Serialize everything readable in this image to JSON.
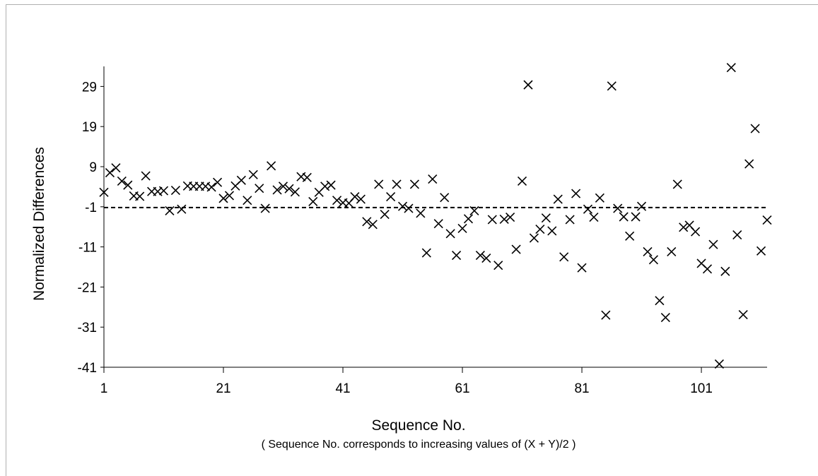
{
  "chart_data": {
    "type": "scatter",
    "title": "",
    "xlabel": "Sequence No.",
    "xlabel_note": "( Sequence No. corresponds to increasing values of (X + Y)/2 )",
    "ylabel": "Normalized Differences",
    "xlim": [
      1,
      112
    ],
    "ylim": [
      -41,
      34
    ],
    "xticks": [
      1,
      21,
      41,
      61,
      81,
      101
    ],
    "yticks": [
      29,
      19,
      9,
      -1,
      -11,
      -21,
      -31,
      -41
    ],
    "grid": false,
    "marker": "x",
    "mean_line": {
      "y": -1.2,
      "style": "dashed"
    },
    "points": [
      [
        1,
        2.6
      ],
      [
        2,
        7.5
      ],
      [
        3,
        8.7
      ],
      [
        4,
        5.4
      ],
      [
        5,
        4.4
      ],
      [
        6,
        1.7
      ],
      [
        7,
        1.6
      ],
      [
        8,
        6.7
      ],
      [
        9,
        2.8
      ],
      [
        10,
        2.8
      ],
      [
        11,
        3.0
      ],
      [
        12,
        -2.0
      ],
      [
        13,
        3.1
      ],
      [
        14,
        -1.6
      ],
      [
        15,
        4.2
      ],
      [
        16,
        4.1
      ],
      [
        17,
        4.1
      ],
      [
        18,
        4.1
      ],
      [
        19,
        3.9
      ],
      [
        20,
        5.1
      ],
      [
        21,
        1.1
      ],
      [
        22,
        1.8
      ],
      [
        23,
        4.2
      ],
      [
        24,
        5.6
      ],
      [
        25,
        0.6
      ],
      [
        26,
        7.0
      ],
      [
        27,
        3.6
      ],
      [
        28,
        -1.4
      ],
      [
        29,
        9.2
      ],
      [
        30,
        3.2
      ],
      [
        31,
        4.1
      ],
      [
        32,
        3.5
      ],
      [
        33,
        2.7
      ],
      [
        34,
        6.5
      ],
      [
        35,
        6.3
      ],
      [
        36,
        0.3
      ],
      [
        37,
        2.6
      ],
      [
        38,
        4.1
      ],
      [
        39,
        4.4
      ],
      [
        40,
        0.6
      ],
      [
        41,
        0.0
      ],
      [
        42,
        -0.1
      ],
      [
        43,
        1.5
      ],
      [
        44,
        0.9
      ],
      [
        45,
        -4.7
      ],
      [
        46,
        -5.4
      ],
      [
        47,
        4.6
      ],
      [
        48,
        -2.9
      ],
      [
        49,
        1.5
      ],
      [
        50,
        4.6
      ],
      [
        51,
        -0.9
      ],
      [
        52,
        -1.4
      ],
      [
        53,
        4.6
      ],
      [
        54,
        -2.6
      ],
      [
        55,
        -12.5
      ],
      [
        56,
        5.9
      ],
      [
        57,
        -5.2
      ],
      [
        58,
        1.3
      ],
      [
        59,
        -7.7
      ],
      [
        60,
        -13.1
      ],
      [
        61,
        -6.4
      ],
      [
        62,
        -4.0
      ],
      [
        63,
        -2.0
      ],
      [
        64,
        -13.1
      ],
      [
        65,
        -13.8
      ],
      [
        66,
        -4.2
      ],
      [
        67,
        -15.6
      ],
      [
        68,
        -4.1
      ],
      [
        69,
        -3.6
      ],
      [
        70,
        -11.6
      ],
      [
        71,
        5.4
      ],
      [
        72,
        29.4
      ],
      [
        73,
        -8.8
      ],
      [
        74,
        -6.6
      ],
      [
        75,
        -3.8
      ],
      [
        76,
        -7.0
      ],
      [
        77,
        0.9
      ],
      [
        78,
        -13.5
      ],
      [
        79,
        -4.2
      ],
      [
        80,
        2.3
      ],
      [
        81,
        -16.2
      ],
      [
        82,
        -1.6
      ],
      [
        83,
        -3.6
      ],
      [
        84,
        1.2
      ],
      [
        85,
        -28.0
      ],
      [
        86,
        29.1
      ],
      [
        87,
        -1.4
      ],
      [
        88,
        -3.5
      ],
      [
        89,
        -8.3
      ],
      [
        90,
        -3.5
      ],
      [
        91,
        -0.9
      ],
      [
        92,
        -12.2
      ],
      [
        93,
        -14.2
      ],
      [
        94,
        -24.4
      ],
      [
        95,
        -28.6
      ],
      [
        96,
        -12.2
      ],
      [
        97,
        4.6
      ],
      [
        98,
        -6.1
      ],
      [
        99,
        -5.6
      ],
      [
        100,
        -7.2
      ],
      [
        101,
        -15.1
      ],
      [
        102,
        -16.5
      ],
      [
        103,
        -10.4
      ],
      [
        104,
        -40.2
      ],
      [
        105,
        -17.1
      ],
      [
        106,
        33.7
      ],
      [
        107,
        -8.0
      ],
      [
        108,
        -27.9
      ],
      [
        109,
        9.7
      ],
      [
        110,
        18.5
      ],
      [
        111,
        -12.0
      ],
      [
        112,
        -4.3
      ]
    ]
  }
}
